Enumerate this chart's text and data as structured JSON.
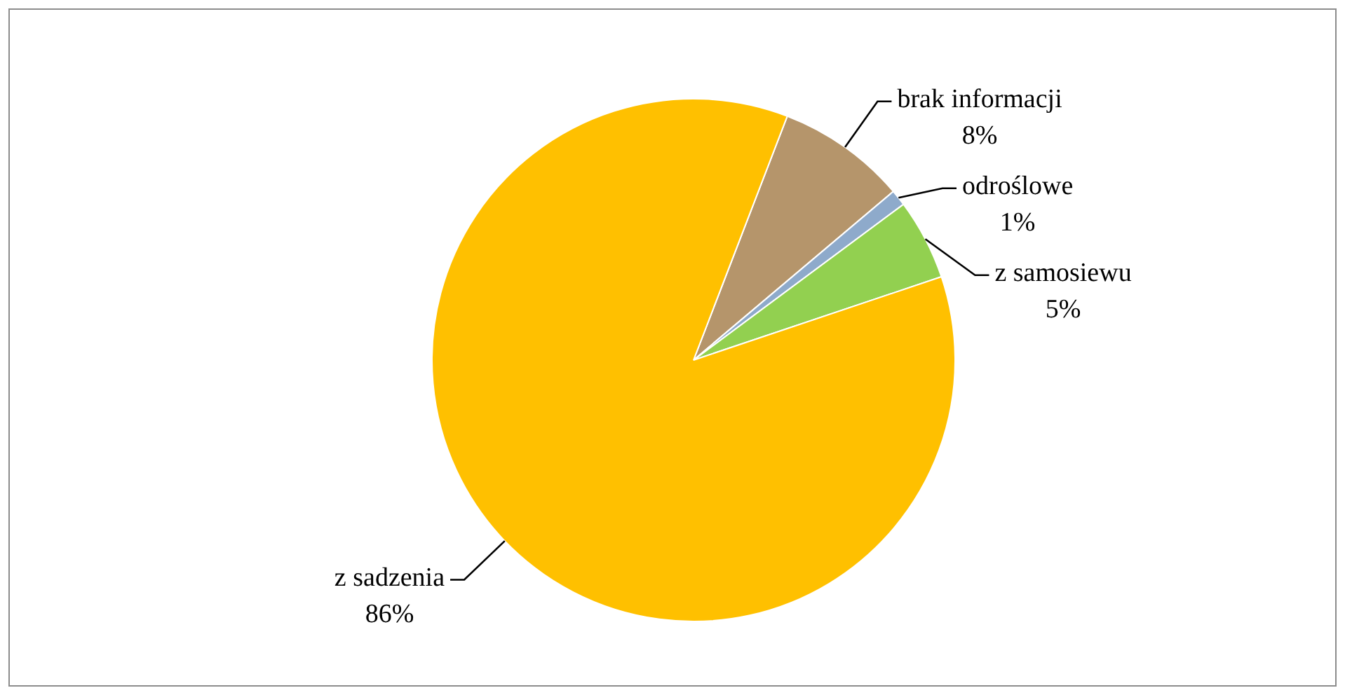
{
  "chart_data": {
    "type": "pie",
    "categories": [
      "brak informacji",
      "odroślowe",
      "z samosiewu",
      "z sadzenia"
    ],
    "values": [
      8,
      1,
      5,
      86
    ],
    "value_labels": [
      "8%",
      "1%",
      "5%",
      "86%"
    ],
    "colors": [
      "#b5956b",
      "#8eaacb",
      "#92d050",
      "#ffc000"
    ],
    "legend": false
  }
}
